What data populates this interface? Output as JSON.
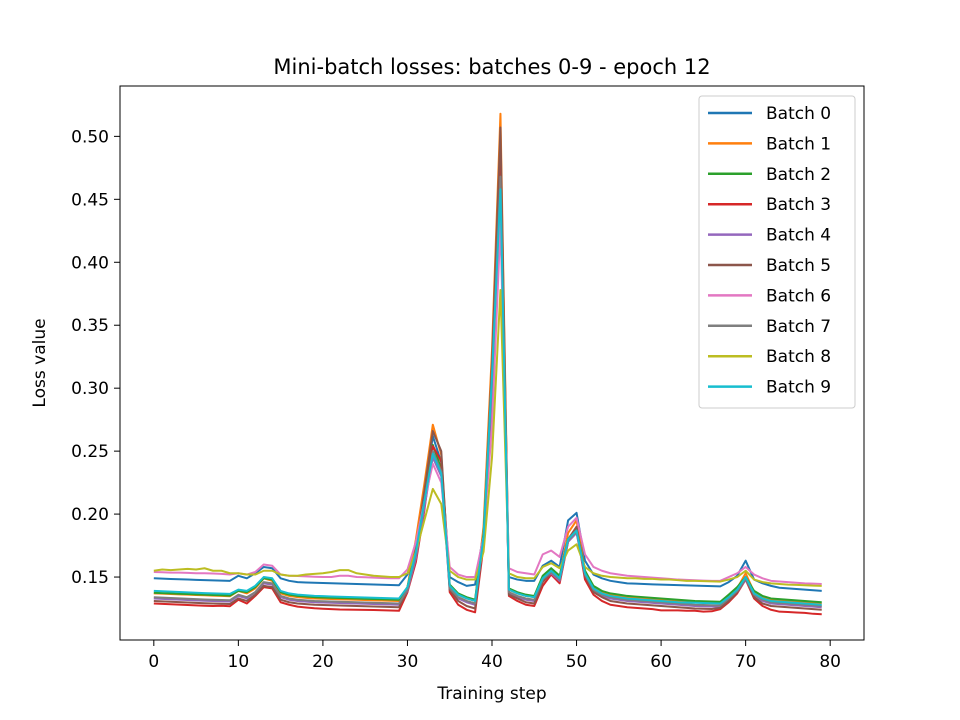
{
  "chart_data": {
    "type": "line",
    "title": "Mini-batch losses: batches 0-9 - epoch 12",
    "xlabel": "Training step",
    "ylabel": "Loss value",
    "xlim": [
      -4,
      84
    ],
    "ylim": [
      0.1,
      0.54
    ],
    "xticks": [
      0,
      10,
      20,
      30,
      40,
      50,
      60,
      70,
      80
    ],
    "xtick_labels": [
      "0",
      "10",
      "20",
      "30",
      "40",
      "50",
      "60",
      "70",
      "80"
    ],
    "yticks": [
      0.15,
      0.2,
      0.25,
      0.3,
      0.35,
      0.4,
      0.45,
      0.5
    ],
    "ytick_labels": [
      "0.15",
      "0.20",
      "0.25",
      "0.30",
      "0.35",
      "0.40",
      "0.45",
      "0.50"
    ],
    "grid": false,
    "legend_position": "upper right",
    "x": [
      0,
      1,
      2,
      3,
      4,
      5,
      6,
      7,
      8,
      9,
      10,
      11,
      12,
      13,
      14,
      15,
      16,
      17,
      18,
      19,
      20,
      21,
      22,
      23,
      24,
      25,
      26,
      27,
      28,
      29,
      30,
      31,
      32,
      33,
      34,
      35,
      36,
      37,
      38,
      39,
      40,
      41,
      42,
      43,
      44,
      45,
      46,
      47,
      48,
      49,
      50,
      51,
      52,
      53,
      54,
      55,
      56,
      57,
      58,
      59,
      60,
      61,
      62,
      63,
      64,
      65,
      66,
      67,
      68,
      69,
      70,
      71,
      72,
      73,
      74,
      75,
      76,
      77,
      78,
      79
    ],
    "series": [
      {
        "name": "Batch 0",
        "color": "#1f77b4",
        "values": [
          0.149,
          0.1487,
          0.1484,
          0.1482,
          0.148,
          0.1478,
          0.1476,
          0.1474,
          0.1472,
          0.147,
          0.151,
          0.149,
          0.153,
          0.158,
          0.157,
          0.149,
          0.147,
          0.146,
          0.1457,
          0.1455,
          0.1453,
          0.1451,
          0.1449,
          0.1447,
          0.1445,
          0.1443,
          0.1441,
          0.1439,
          0.1437,
          0.1435,
          0.152,
          0.175,
          0.214,
          0.262,
          0.241,
          0.15,
          0.146,
          0.143,
          0.144,
          0.185,
          0.29,
          0.482,
          0.15,
          0.148,
          0.147,
          0.147,
          0.159,
          0.163,
          0.158,
          0.195,
          0.201,
          0.163,
          0.152,
          0.149,
          0.147,
          0.146,
          0.145,
          0.1448,
          0.1445,
          0.1442,
          0.144,
          0.1438,
          0.1436,
          0.1434,
          0.1432,
          0.143,
          0.1428,
          0.1426,
          0.146,
          0.151,
          0.163,
          0.148,
          0.145,
          0.143,
          0.1415,
          0.141,
          0.1405,
          0.14,
          0.1395,
          0.139
        ]
      },
      {
        "name": "Batch 1",
        "color": "#ff7f0e",
        "values": [
          0.137,
          0.1368,
          0.1365,
          0.1362,
          0.136,
          0.1357,
          0.1355,
          0.1352,
          0.135,
          0.1347,
          0.139,
          0.137,
          0.141,
          0.149,
          0.147,
          0.137,
          0.135,
          0.134,
          0.1335,
          0.133,
          0.1328,
          0.1326,
          0.1324,
          0.1322,
          0.132,
          0.1318,
          0.1316,
          0.1314,
          0.1312,
          0.131,
          0.142,
          0.18,
          0.224,
          0.271,
          0.247,
          0.143,
          0.136,
          0.133,
          0.131,
          0.19,
          0.33,
          0.518,
          0.14,
          0.137,
          0.135,
          0.134,
          0.15,
          0.156,
          0.15,
          0.185,
          0.195,
          0.155,
          0.142,
          0.138,
          0.136,
          0.135,
          0.134,
          0.1335,
          0.133,
          0.1325,
          0.132,
          0.1315,
          0.131,
          0.1305,
          0.13,
          0.1298,
          0.1296,
          0.1294,
          0.135,
          0.141,
          0.153,
          0.138,
          0.134,
          0.132,
          0.1315,
          0.131,
          0.1305,
          0.13,
          0.1295,
          0.129
        ]
      },
      {
        "name": "Batch 2",
        "color": "#2ca02c",
        "values": [
          0.1375,
          0.1372,
          0.137,
          0.1367,
          0.1365,
          0.1362,
          0.136,
          0.1357,
          0.1355,
          0.1352,
          0.139,
          0.138,
          0.142,
          0.149,
          0.148,
          0.138,
          0.136,
          0.135,
          0.1345,
          0.134,
          0.1338,
          0.1336,
          0.1334,
          0.1332,
          0.133,
          0.1328,
          0.1326,
          0.1324,
          0.1322,
          0.132,
          0.142,
          0.172,
          0.212,
          0.255,
          0.236,
          0.144,
          0.137,
          0.134,
          0.132,
          0.185,
          0.31,
          0.47,
          0.141,
          0.138,
          0.136,
          0.135,
          0.151,
          0.157,
          0.151,
          0.18,
          0.188,
          0.155,
          0.143,
          0.139,
          0.137,
          0.136,
          0.135,
          0.1345,
          0.134,
          0.1335,
          0.133,
          0.1325,
          0.132,
          0.1315,
          0.131,
          0.1308,
          0.1306,
          0.1304,
          0.136,
          0.142,
          0.15,
          0.139,
          0.135,
          0.133,
          0.1325,
          0.132,
          0.1315,
          0.131,
          0.1305,
          0.13
        ]
      },
      {
        "name": "Batch 3",
        "color": "#d62728",
        "values": [
          0.129,
          0.1287,
          0.1284,
          0.1281,
          0.1278,
          0.1275,
          0.1272,
          0.127,
          0.1272,
          0.1268,
          0.132,
          0.129,
          0.135,
          0.142,
          0.141,
          0.13,
          0.128,
          0.1265,
          0.1258,
          0.1252,
          0.1248,
          0.1245,
          0.1242,
          0.1241,
          0.124,
          0.1239,
          0.1238,
          0.1236,
          0.1234,
          0.1232,
          0.138,
          0.162,
          0.203,
          0.254,
          0.242,
          0.138,
          0.128,
          0.124,
          0.122,
          0.175,
          0.3,
          0.49,
          0.135,
          0.131,
          0.128,
          0.127,
          0.143,
          0.152,
          0.145,
          0.178,
          0.187,
          0.148,
          0.136,
          0.131,
          0.128,
          0.127,
          0.126,
          0.1255,
          0.125,
          0.1245,
          0.1235,
          0.1235,
          0.1235,
          0.1232,
          0.1232,
          0.1225,
          0.1228,
          0.1245,
          0.13,
          0.137,
          0.148,
          0.133,
          0.127,
          0.124,
          0.1225,
          0.1222,
          0.1218,
          0.1215,
          0.1208,
          0.1205
        ]
      },
      {
        "name": "Batch 4",
        "color": "#9467bd",
        "values": [
          0.133,
          0.1327,
          0.1324,
          0.1321,
          0.1318,
          0.1315,
          0.1312,
          0.131,
          0.1308,
          0.1306,
          0.135,
          0.133,
          0.138,
          0.145,
          0.144,
          0.134,
          0.132,
          0.131,
          0.1305,
          0.13,
          0.1298,
          0.1296,
          0.1294,
          0.1292,
          0.129,
          0.1288,
          0.1286,
          0.1284,
          0.1282,
          0.128,
          0.139,
          0.165,
          0.205,
          0.245,
          0.23,
          0.14,
          0.133,
          0.13,
          0.128,
          0.178,
          0.3,
          0.462,
          0.137,
          0.134,
          0.132,
          0.131,
          0.147,
          0.153,
          0.147,
          0.178,
          0.185,
          0.151,
          0.139,
          0.135,
          0.133,
          0.132,
          0.131,
          0.1305,
          0.13,
          0.1295,
          0.129,
          0.1285,
          0.128,
          0.1275,
          0.127,
          0.1268,
          0.1266,
          0.1264,
          0.132,
          0.138,
          0.148,
          0.135,
          0.131,
          0.129,
          0.1285,
          0.128,
          0.1275,
          0.127,
          0.1265,
          0.126
        ]
      },
      {
        "name": "Batch 5",
        "color": "#8c564b",
        "values": [
          0.131,
          0.1307,
          0.1304,
          0.1301,
          0.1298,
          0.1295,
          0.1292,
          0.129,
          0.1288,
          0.1286,
          0.133,
          0.131,
          0.136,
          0.143,
          0.142,
          0.132,
          0.13,
          0.129,
          0.1285,
          0.128,
          0.1278,
          0.1276,
          0.1274,
          0.1272,
          0.127,
          0.1268,
          0.1266,
          0.1264,
          0.1262,
          0.126,
          0.14,
          0.172,
          0.218,
          0.266,
          0.25,
          0.14,
          0.131,
          0.127,
          0.125,
          0.18,
          0.32,
          0.507,
          0.136,
          0.133,
          0.13,
          0.129,
          0.146,
          0.154,
          0.148,
          0.18,
          0.19,
          0.151,
          0.138,
          0.134,
          0.131,
          0.13,
          0.129,
          0.1285,
          0.128,
          0.1275,
          0.127,
          0.1265,
          0.126,
          0.1255,
          0.125,
          0.1248,
          0.1246,
          0.1255,
          0.131,
          0.138,
          0.149,
          0.134,
          0.129,
          0.127,
          0.1265,
          0.126,
          0.1255,
          0.125,
          0.1245,
          0.124
        ]
      },
      {
        "name": "Batch 6",
        "color": "#e377c2",
        "values": [
          0.154,
          0.1538,
          0.1535,
          0.1535,
          0.1533,
          0.153,
          0.153,
          0.1528,
          0.1525,
          0.152,
          0.153,
          0.152,
          0.154,
          0.16,
          0.159,
          0.152,
          0.151,
          0.1508,
          0.1505,
          0.1502,
          0.15,
          0.15,
          0.151,
          0.151,
          0.15,
          0.1498,
          0.1495,
          0.1492,
          0.149,
          0.149,
          0.156,
          0.178,
          0.21,
          0.24,
          0.225,
          0.158,
          0.152,
          0.15,
          0.15,
          0.182,
          0.27,
          0.43,
          0.157,
          0.154,
          0.153,
          0.152,
          0.168,
          0.171,
          0.166,
          0.19,
          0.197,
          0.168,
          0.158,
          0.155,
          0.153,
          0.152,
          0.151,
          0.1505,
          0.15,
          0.1495,
          0.149,
          0.1485,
          0.148,
          0.1478,
          0.1475,
          0.1472,
          0.147,
          0.147,
          0.15,
          0.153,
          0.158,
          0.152,
          0.149,
          0.147,
          0.1465,
          0.146,
          0.1455,
          0.145,
          0.1448,
          0.1445
        ]
      },
      {
        "name": "Batch 7",
        "color": "#7f7f7f",
        "values": [
          0.134,
          0.1337,
          0.1334,
          0.1331,
          0.1328,
          0.1325,
          0.1322,
          0.132,
          0.1318,
          0.1316,
          0.136,
          0.134,
          0.138,
          0.146,
          0.145,
          0.135,
          0.133,
          0.132,
          0.1315,
          0.131,
          0.1308,
          0.1306,
          0.1304,
          0.1302,
          0.13,
          0.1298,
          0.1296,
          0.1294,
          0.1292,
          0.129,
          0.14,
          0.168,
          0.21,
          0.25,
          0.234,
          0.141,
          0.134,
          0.131,
          0.129,
          0.18,
          0.305,
          0.468,
          0.138,
          0.135,
          0.133,
          0.132,
          0.148,
          0.154,
          0.148,
          0.179,
          0.186,
          0.152,
          0.14,
          0.136,
          0.134,
          0.133,
          0.132,
          0.1315,
          0.131,
          0.1305,
          0.13,
          0.1295,
          0.129,
          0.1285,
          0.128,
          0.1278,
          0.1276,
          0.1274,
          0.133,
          0.139,
          0.149,
          0.136,
          0.132,
          0.13,
          0.1295,
          0.129,
          0.1285,
          0.128,
          0.1275,
          0.127
        ]
      },
      {
        "name": "Batch 8",
        "color": "#bcbd22",
        "values": [
          0.155,
          0.156,
          0.1555,
          0.156,
          0.1565,
          0.156,
          0.157,
          0.155,
          0.155,
          0.153,
          0.153,
          0.152,
          0.152,
          0.155,
          0.155,
          0.152,
          0.151,
          0.151,
          0.152,
          0.1525,
          0.153,
          0.154,
          0.1555,
          0.1555,
          0.153,
          0.152,
          0.151,
          0.1505,
          0.15,
          0.15,
          0.153,
          0.17,
          0.195,
          0.22,
          0.208,
          0.155,
          0.15,
          0.148,
          0.148,
          0.17,
          0.245,
          0.378,
          0.153,
          0.15,
          0.149,
          0.149,
          0.158,
          0.161,
          0.157,
          0.171,
          0.176,
          0.158,
          0.153,
          0.151,
          0.15,
          0.1495,
          0.149,
          0.149,
          0.1485,
          0.1485,
          0.148,
          0.148,
          0.1475,
          0.147,
          0.147,
          0.1468,
          0.1466,
          0.1464,
          0.148,
          0.15,
          0.155,
          0.148,
          0.146,
          0.145,
          0.1445,
          0.144,
          0.1438,
          0.1435,
          0.1432,
          0.143
        ]
      },
      {
        "name": "Batch 9",
        "color": "#17becf",
        "values": [
          0.139,
          0.1387,
          0.1384,
          0.1381,
          0.1378,
          0.1375,
          0.1372,
          0.137,
          0.1368,
          0.1366,
          0.14,
          0.139,
          0.143,
          0.15,
          0.149,
          0.139,
          0.137,
          0.136,
          0.1355,
          0.135,
          0.1348,
          0.1346,
          0.1344,
          0.1342,
          0.134,
          0.1338,
          0.1336,
          0.1334,
          0.1332,
          0.133,
          0.142,
          0.17,
          0.21,
          0.248,
          0.232,
          0.143,
          0.136,
          0.133,
          0.131,
          0.182,
          0.31,
          0.458,
          0.14,
          0.137,
          0.135,
          0.134,
          0.149,
          0.155,
          0.149,
          0.18,
          0.187,
          0.153,
          0.141,
          0.137,
          0.135,
          0.134,
          0.133,
          0.1325,
          0.132,
          0.1315,
          0.131,
          0.1305,
          0.13,
          0.1298,
          0.1296,
          0.1294,
          0.1292,
          0.129,
          0.134,
          0.14,
          0.15,
          0.137,
          0.133,
          0.131,
          0.1305,
          0.13,
          0.1295,
          0.129,
          0.1285,
          0.128
        ]
      }
    ]
  }
}
